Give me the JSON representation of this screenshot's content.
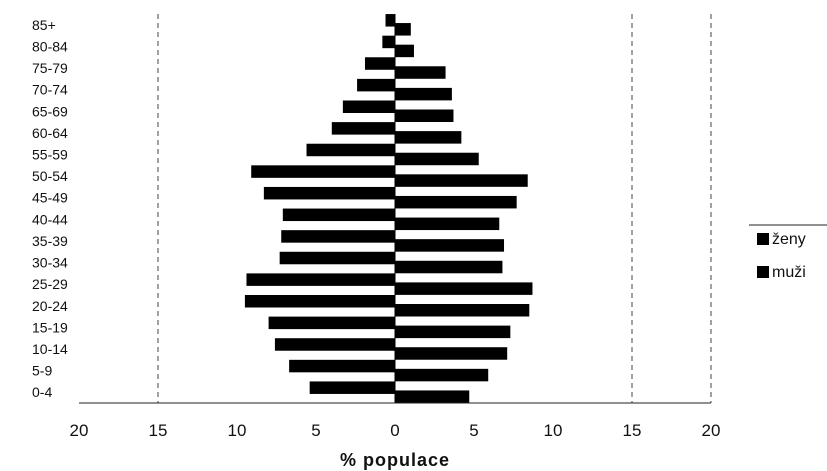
{
  "chart_data": {
    "type": "bar",
    "orientation": "horizontal",
    "title": "",
    "xlabel": "% populace",
    "ylabel": "",
    "xlim": [
      -20,
      20
    ],
    "x_ticks": [
      -20,
      -15,
      -10,
      -5,
      0,
      5,
      10,
      15,
      20
    ],
    "x_tick_labels": [
      "20",
      "15",
      "10",
      "5",
      "0",
      "5",
      "10",
      "15",
      "20"
    ],
    "categories": [
      "0-4",
      "5-9",
      "10-14",
      "15-19",
      "20-24",
      "25-29",
      "30-34",
      "35-39",
      "40-44",
      "45-49",
      "50-54",
      "55-59",
      "60-64",
      "65-69",
      "70-74",
      "75-79",
      "80-84",
      "85+"
    ],
    "series": [
      {
        "name": "ženy",
        "side": "right",
        "color": "#000000",
        "values": [
          4.7,
          5.9,
          7.1,
          7.3,
          8.5,
          8.7,
          6.8,
          6.9,
          6.6,
          7.7,
          8.4,
          5.3,
          4.2,
          3.7,
          3.6,
          3.2,
          1.2,
          1.0
        ]
      },
      {
        "name": "muži",
        "side": "left",
        "color": "#000000",
        "values": [
          5.4,
          6.7,
          7.6,
          8.0,
          9.5,
          9.4,
          7.3,
          7.2,
          7.1,
          8.3,
          9.1,
          5.6,
          4.0,
          3.3,
          2.4,
          1.9,
          0.8,
          0.6
        ]
      }
    ],
    "gridlines_x": [
      -15,
      15,
      20
    ],
    "grid": true,
    "legend_position": "right"
  }
}
